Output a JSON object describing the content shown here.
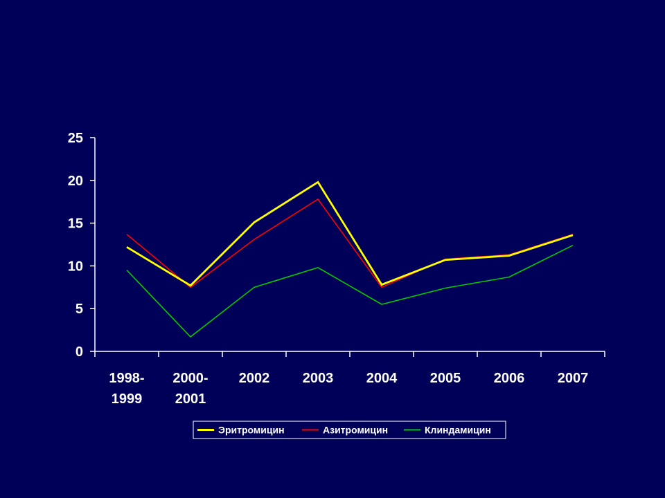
{
  "colors": {
    "background": "#000058",
    "axis": "#ffffff",
    "text": "#ffffff",
    "legend_border": "#ffffff"
  },
  "chart_data": {
    "type": "line",
    "categories": [
      "1998-1999",
      "2000-2001",
      "2002",
      "2003",
      "2004",
      "2005",
      "2006",
      "2007"
    ],
    "category_lines": [
      [
        "1998-",
        "1999"
      ],
      [
        "2000-",
        "2001"
      ],
      [
        "2002"
      ],
      [
        "2003"
      ],
      [
        "2004"
      ],
      [
        "2005"
      ],
      [
        "2006"
      ],
      [
        "2007"
      ]
    ],
    "series": [
      {
        "name": "Эритромицин",
        "color": "#ffff00",
        "values": [
          12.2,
          7.7,
          15.1,
          19.8,
          7.8,
          10.7,
          11.2,
          13.6
        ]
      },
      {
        "name": "Азитромицин",
        "color": "#ff0000",
        "values": [
          13.7,
          7.5,
          13.1,
          17.8,
          7.5,
          10.8,
          11.3,
          13.7
        ]
      },
      {
        "name": "Клиндамицин",
        "color": "#00cc00",
        "values": [
          9.5,
          1.7,
          7.5,
          9.8,
          5.5,
          7.4,
          8.7,
          12.4
        ]
      }
    ],
    "ylim": [
      0,
      25
    ],
    "yticks": [
      0,
      5,
      10,
      15,
      20,
      25
    ],
    "title": "",
    "xlabel": "",
    "ylabel": "",
    "grid": false,
    "legend_position": "bottom"
  }
}
